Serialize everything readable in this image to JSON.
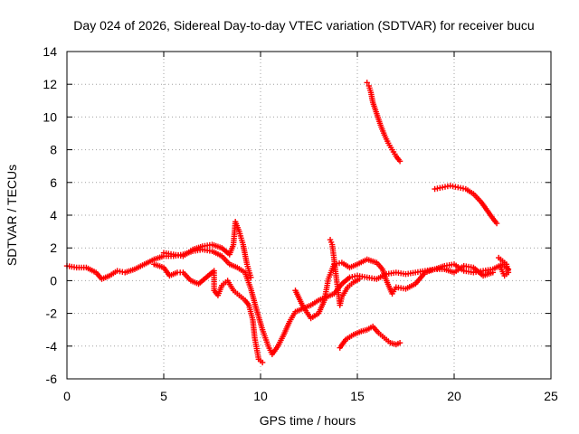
{
  "chart_data": {
    "type": "scatter",
    "title": "Day 024 of 2026, Sidereal Day-to-day VTEC variation (SDTVAR) for receiver bucu",
    "xlabel": "GPS time / hours",
    "ylabel": "SDTVAR / TECUs",
    "xlim": [
      0,
      25
    ],
    "ylim": [
      -6,
      14
    ],
    "xticks": [
      0,
      5,
      10,
      15,
      20,
      25
    ],
    "yticks": [
      -6,
      -4,
      -2,
      0,
      2,
      4,
      6,
      8,
      10,
      12,
      14
    ],
    "grid": true,
    "marker": "plus",
    "color": "#ff0000",
    "series": [
      {
        "name": "main-track",
        "points": [
          [
            0,
            0.9
          ],
          [
            0.5,
            0.8
          ],
          [
            1,
            0.8
          ],
          [
            1.5,
            0.5
          ],
          [
            1.8,
            0.1
          ],
          [
            2.2,
            0.3
          ],
          [
            2.6,
            0.6
          ],
          [
            3,
            0.5
          ],
          [
            3.5,
            0.7
          ],
          [
            4,
            1.0
          ],
          [
            4.5,
            1.3
          ],
          [
            5,
            1.5
          ],
          [
            5.5,
            1.5
          ],
          [
            6,
            1.6
          ],
          [
            6.5,
            1.8
          ],
          [
            7,
            1.9
          ],
          [
            7.5,
            1.8
          ],
          [
            8,
            1.5
          ],
          [
            8.4,
            1.0
          ],
          [
            8.8,
            0.8
          ],
          [
            9.2,
            0.5
          ],
          [
            9.5,
            -0.5
          ],
          [
            9.8,
            -1.8
          ],
          [
            10.1,
            -3.0
          ],
          [
            10.4,
            -4.0
          ],
          [
            10.6,
            -4.5
          ],
          [
            10.9,
            -4.0
          ],
          [
            11.2,
            -3.3
          ],
          [
            11.5,
            -2.5
          ],
          [
            11.8,
            -1.9
          ],
          [
            12.2,
            -1.7
          ],
          [
            12.6,
            -1.5
          ],
          [
            13,
            -1.2
          ],
          [
            13.4,
            -1.0
          ],
          [
            13.8,
            -0.8
          ],
          [
            14.2,
            -0.2
          ],
          [
            14.6,
            0.2
          ],
          [
            15,
            0.3
          ],
          [
            15.5,
            0.2
          ],
          [
            16,
            0.1
          ],
          [
            16.5,
            0.4
          ],
          [
            17,
            0.5
          ],
          [
            17.5,
            0.4
          ],
          [
            18,
            0.5
          ],
          [
            18.5,
            0.6
          ],
          [
            19,
            0.7
          ],
          [
            19.5,
            0.9
          ],
          [
            20,
            1.0
          ],
          [
            20.5,
            0.6
          ],
          [
            21,
            0.5
          ],
          [
            21.5,
            0.6
          ],
          [
            22,
            0.7
          ],
          [
            22.5,
            1.0
          ],
          [
            22.8,
            0.7
          ]
        ]
      },
      {
        "name": "upper-branch-morning",
        "points": [
          [
            5,
            1.7
          ],
          [
            5.5,
            1.6
          ],
          [
            6,
            1.5
          ],
          [
            6.5,
            1.9
          ],
          [
            7,
            2.1
          ],
          [
            7.5,
            2.2
          ],
          [
            8,
            2.0
          ],
          [
            8.4,
            1.6
          ],
          [
            8.6,
            2.2
          ],
          [
            8.7,
            3.6
          ],
          [
            8.9,
            3.0
          ],
          [
            9.1,
            2.2
          ],
          [
            9.3,
            1.0
          ],
          [
            9.5,
            0.2
          ]
        ]
      },
      {
        "name": "lower-branch-morning",
        "points": [
          [
            4.5,
            1.0
          ],
          [
            5,
            0.8
          ],
          [
            5.3,
            0.3
          ],
          [
            5.7,
            0.5
          ],
          [
            6,
            0.5
          ],
          [
            6.4,
            0.0
          ],
          [
            6.8,
            -0.2
          ],
          [
            7.2,
            0.2
          ],
          [
            7.6,
            0.6
          ],
          [
            7.6,
            -0.6
          ],
          [
            7.8,
            -0.9
          ],
          [
            8,
            -0.3
          ],
          [
            8.3,
            0.0
          ],
          [
            8.6,
            -0.6
          ],
          [
            8.9,
            -0.9
          ],
          [
            9.2,
            -1.2
          ],
          [
            9.4,
            -1.5
          ],
          [
            9.6,
            -2.4
          ],
          [
            9.7,
            -3.5
          ],
          [
            9.9,
            -4.8
          ],
          [
            10.1,
            -5.0
          ]
        ]
      },
      {
        "name": "mid-branch-afternoon",
        "points": [
          [
            11.8,
            -0.6
          ],
          [
            12.2,
            -1.6
          ],
          [
            12.6,
            -2.3
          ],
          [
            13,
            -2.0
          ],
          [
            13.3,
            -1.2
          ],
          [
            13.5,
            0.1
          ],
          [
            13.8,
            1.0
          ],
          [
            14.2,
            1.1
          ],
          [
            14.6,
            0.8
          ],
          [
            15,
            1.0
          ],
          [
            15.5,
            1.3
          ],
          [
            16,
            1.1
          ],
          [
            16.3,
            0.7
          ],
          [
            16.5,
            0.0
          ],
          [
            16.8,
            -0.8
          ],
          [
            17,
            -0.4
          ],
          [
            17.5,
            -0.5
          ],
          [
            18,
            -0.2
          ],
          [
            18.5,
            0.5
          ],
          [
            19,
            0.7
          ],
          [
            19.5,
            0.7
          ],
          [
            20,
            0.5
          ],
          [
            20.5,
            0.9
          ],
          [
            21,
            0.8
          ],
          [
            21.5,
            0.3
          ],
          [
            22,
            0.5
          ]
        ]
      },
      {
        "name": "spike-1330",
        "points": [
          [
            13.6,
            2.5
          ],
          [
            13.7,
            2.2
          ],
          [
            13.8,
            1.3
          ],
          [
            13.9,
            0.3
          ],
          [
            14.0,
            -0.6
          ],
          [
            14.1,
            -1.5
          ],
          [
            14.2,
            -1.0
          ],
          [
            14.5,
            -0.4
          ],
          [
            14.8,
            -0.1
          ],
          [
            15.1,
            0.1
          ]
        ]
      },
      {
        "name": "high-arc-1530-1700",
        "points": [
          [
            15.5,
            12.1
          ],
          [
            15.6,
            11.9
          ],
          [
            15.7,
            11.5
          ],
          [
            15.8,
            10.9
          ],
          [
            16,
            10.2
          ],
          [
            16.2,
            9.5
          ],
          [
            16.4,
            8.9
          ],
          [
            16.6,
            8.4
          ],
          [
            16.8,
            8.0
          ],
          [
            17,
            7.6
          ],
          [
            17.2,
            7.3
          ]
        ]
      },
      {
        "name": "low-arc-1400-1700",
        "points": [
          [
            14.1,
            -4.1
          ],
          [
            14.4,
            -3.6
          ],
          [
            14.8,
            -3.3
          ],
          [
            15.2,
            -3.1
          ],
          [
            15.5,
            -3.0
          ],
          [
            15.8,
            -2.8
          ],
          [
            16.1,
            -3.2
          ],
          [
            16.4,
            -3.5
          ],
          [
            16.7,
            -3.8
          ],
          [
            17.0,
            -3.9
          ],
          [
            17.2,
            -3.8
          ]
        ]
      },
      {
        "name": "arc-1900-2200",
        "points": [
          [
            19,
            5.6
          ],
          [
            19.4,
            5.7
          ],
          [
            19.8,
            5.8
          ],
          [
            20.2,
            5.7
          ],
          [
            20.6,
            5.6
          ],
          [
            21,
            5.3
          ],
          [
            21.4,
            4.8
          ],
          [
            21.7,
            4.3
          ],
          [
            22,
            3.8
          ],
          [
            22.2,
            3.5
          ]
        ]
      },
      {
        "name": "end-cluster",
        "points": [
          [
            22.3,
            1.4
          ],
          [
            22.5,
            1.2
          ],
          [
            22.7,
            1.0
          ],
          [
            22.8,
            0.5
          ],
          [
            22.6,
            0.3
          ],
          [
            22.4,
            0.8
          ]
        ]
      }
    ]
  }
}
